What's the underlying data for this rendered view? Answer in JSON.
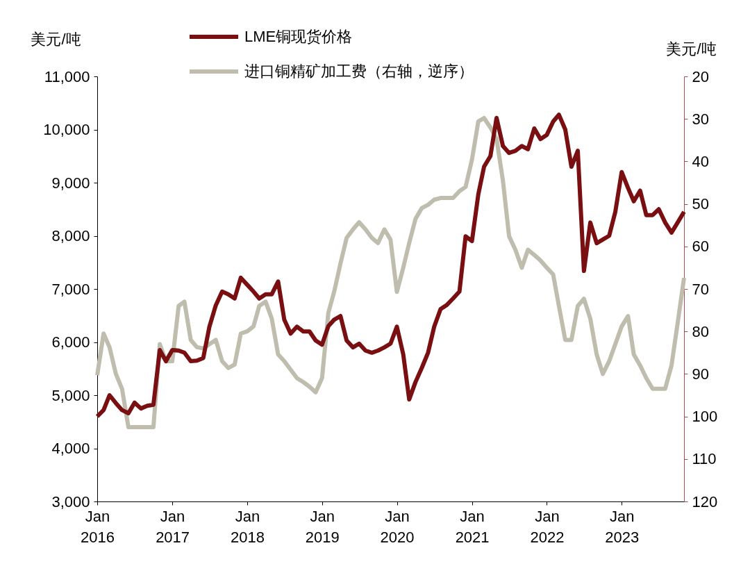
{
  "chart_data": {
    "type": "line",
    "ylabel": "美元/吨",
    "y2label": "美元/吨",
    "x": [
      "2016-01",
      "2016-02",
      "2016-03",
      "2016-04",
      "2016-05",
      "2016-06",
      "2016-07",
      "2016-08",
      "2016-09",
      "2016-10",
      "2016-11",
      "2016-12",
      "2017-01",
      "2017-02",
      "2017-03",
      "2017-04",
      "2017-05",
      "2017-06",
      "2017-07",
      "2017-08",
      "2017-09",
      "2017-10",
      "2017-11",
      "2017-12",
      "2018-01",
      "2018-02",
      "2018-03",
      "2018-04",
      "2018-05",
      "2018-06",
      "2018-07",
      "2018-08",
      "2018-09",
      "2018-10",
      "2018-11",
      "2018-12",
      "2019-01",
      "2019-02",
      "2019-03",
      "2019-04",
      "2019-05",
      "2019-06",
      "2019-07",
      "2019-08",
      "2019-09",
      "2019-10",
      "2019-11",
      "2019-12",
      "2020-01",
      "2020-02",
      "2020-03",
      "2020-04",
      "2020-05",
      "2020-06",
      "2020-07",
      "2020-08",
      "2020-09",
      "2020-10",
      "2020-11",
      "2020-12",
      "2021-01",
      "2021-02",
      "2021-03",
      "2021-04",
      "2021-05",
      "2021-06",
      "2021-07",
      "2021-08",
      "2021-09",
      "2021-10",
      "2021-11",
      "2021-12",
      "2022-01",
      "2022-02",
      "2022-03",
      "2022-04",
      "2022-05",
      "2022-06",
      "2022-07",
      "2022-08",
      "2022-09",
      "2022-10",
      "2022-11",
      "2022-12",
      "2023-01",
      "2023-02",
      "2023-03",
      "2023-04",
      "2023-05",
      "2023-06",
      "2023-07",
      "2023-08",
      "2023-09",
      "2023-10",
      "2023-11"
    ],
    "series": [
      {
        "name": "LME铜现货价格",
        "color": "#7a0f12",
        "values": [
          4600,
          4720,
          5000,
          4850,
          4720,
          4660,
          4860,
          4750,
          4800,
          4820,
          5850,
          5640,
          5850,
          5840,
          5800,
          5640,
          5650,
          5700,
          6290,
          6690,
          6950,
          6900,
          6820,
          7210,
          7080,
          6950,
          6820,
          6900,
          6900,
          7140,
          6420,
          6160,
          6290,
          6200,
          6200,
          6030,
          5950,
          6300,
          6420,
          6490,
          6030,
          5900,
          5970,
          5840,
          5800,
          5840,
          5900,
          5970,
          6290,
          5770,
          4920,
          5250,
          5510,
          5800,
          6290,
          6620,
          6700,
          6820,
          6950,
          7990,
          7900,
          8780,
          9300,
          9500,
          10220,
          9690,
          9560,
          9600,
          9690,
          9630,
          10020,
          9820,
          9900,
          10150,
          10280,
          10000,
          9300,
          9600,
          7340,
          8250,
          7860,
          7930,
          8000,
          8450,
          9200,
          8900,
          8650,
          8850,
          8390,
          8390,
          8500,
          8250,
          8060,
          8250,
          8450
        ]
      },
      {
        "name": "进口铜精矿加工费（右轴，逆序）",
        "color": "#bfbdad",
        "axis": "y2",
        "values": [
          90.3,
          80.5,
          83.7,
          90,
          93.5,
          102.5,
          102.5,
          102.5,
          102.5,
          102.5,
          83,
          87,
          87,
          74,
          73,
          82,
          83.7,
          84,
          83,
          82,
          87,
          88.6,
          87.8,
          80.5,
          80,
          78.8,
          74,
          73,
          77,
          85.4,
          87,
          89,
          91,
          91.9,
          93,
          94.3,
          91,
          75.6,
          70.7,
          64,
          58,
          56,
          54.3,
          56,
          58,
          59.2,
          56,
          58.4,
          70.7,
          65,
          59.2,
          53.5,
          51,
          50.2,
          49,
          48.6,
          48.6,
          48.6,
          47,
          46,
          39.6,
          30.6,
          29.8,
          32,
          34.7,
          44.5,
          57.6,
          60.8,
          65,
          60.8,
          62,
          63.3,
          65,
          66.6,
          74,
          82,
          82,
          74,
          72.3,
          77,
          85.4,
          90,
          87,
          83,
          78.8,
          76.4,
          85.4,
          88,
          91,
          93.5,
          93.5,
          93.5,
          88,
          78,
          67.4
        ]
      }
    ],
    "xlim": [
      "2016-01",
      "2023-11"
    ],
    "xticks": [
      {
        "value": "2016-01",
        "label": "Jan\n2016"
      },
      {
        "value": "2017-01",
        "label": "Jan\n2017"
      },
      {
        "value": "2018-01",
        "label": "Jan\n2018"
      },
      {
        "value": "2019-01",
        "label": "Jan\n2019"
      },
      {
        "value": "2020-01",
        "label": "Jan\n2020"
      },
      {
        "value": "2021-01",
        "label": "Jan\n2021"
      },
      {
        "value": "2022-01",
        "label": "Jan\n2022"
      },
      {
        "value": "2023-01",
        "label": "Jan\n2023"
      }
    ],
    "ylim": [
      3000,
      11000
    ],
    "yticks": [
      {
        "value": 3000,
        "label": "3,000"
      },
      {
        "value": 4000,
        "label": "4,000"
      },
      {
        "value": 5000,
        "label": "5,000"
      },
      {
        "value": 6000,
        "label": "6,000"
      },
      {
        "value": 7000,
        "label": "7,000"
      },
      {
        "value": 8000,
        "label": "8,000"
      },
      {
        "value": 9000,
        "label": "9,000"
      },
      {
        "value": 10000,
        "label": "10,000"
      },
      {
        "value": 11000,
        "label": "11,000"
      }
    ],
    "y2lim": [
      120,
      20
    ],
    "y2ticks": [
      20,
      30,
      40,
      50,
      60,
      70,
      80,
      90,
      100,
      110,
      120
    ],
    "legend": "top",
    "grid": false,
    "marker": "none",
    "line_style": "solid"
  }
}
